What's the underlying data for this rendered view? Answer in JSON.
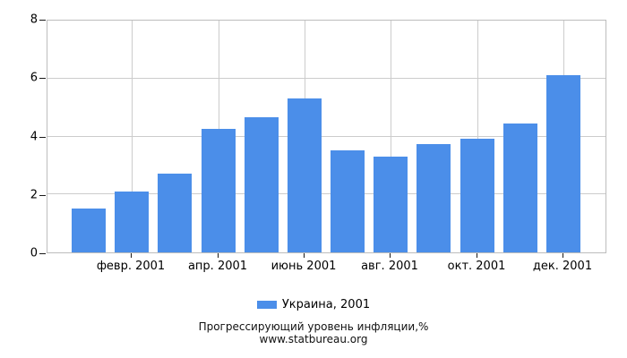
{
  "page": {
    "background": "#ffffff"
  },
  "chart_data": {
    "type": "bar",
    "title": "Прогрессирующий уровень инфляции,%",
    "source": "www.statbureau.org",
    "series": [
      {
        "name": "Украина, 2001",
        "color": "#4b8ee9",
        "values": [
          1.5,
          2.11,
          2.72,
          4.26,
          4.68,
          5.31,
          3.52,
          3.31,
          3.73,
          3.93,
          4.45,
          6.12
        ]
      }
    ],
    "bar_count": 12,
    "ylim": [
      0,
      8
    ],
    "yticks": [
      0,
      2,
      4,
      6,
      8
    ],
    "xticks": [
      {
        "bar_index": 1,
        "label": "февр. 2001"
      },
      {
        "bar_index": 3,
        "label": "апр. 2001"
      },
      {
        "bar_index": 5,
        "label": "июнь 2001"
      },
      {
        "bar_index": 7,
        "label": "авг. 2001"
      },
      {
        "bar_index": 9,
        "label": "окт. 2001"
      },
      {
        "bar_index": 11,
        "label": "дек. 2001"
      }
    ],
    "grid": true,
    "grid_color": "#cccccc",
    "legend_position": "bottom"
  }
}
